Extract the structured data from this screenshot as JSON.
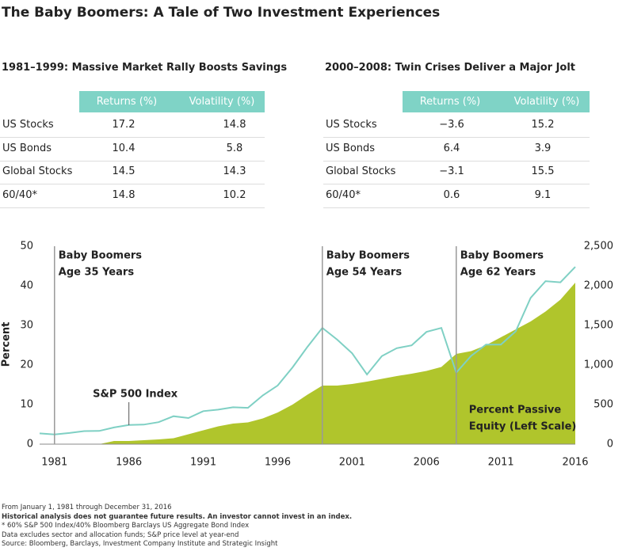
{
  "title": "The Baby Boomers: A Tale of Two Investment Experiences",
  "tables": [
    {
      "title": "1981–1999: Massive Market Rally Boosts Savings",
      "columns": [
        "Returns (%)",
        "Volatility (%)"
      ],
      "rows": [
        [
          "US Stocks",
          "17.2",
          "14.8"
        ],
        [
          "US Bonds",
          "10.4",
          "5.8"
        ],
        [
          "Global Stocks",
          "14.5",
          "14.3"
        ],
        [
          "60/40*",
          "14.8",
          "10.2"
        ]
      ]
    },
    {
      "title": "2000–2008: Twin Crises Deliver a Major Jolt",
      "columns": [
        "Returns (%)",
        "Volatility (%)"
      ],
      "rows": [
        [
          "US Stocks",
          "−3.6",
          "15.2"
        ],
        [
          "US Bonds",
          "6.4",
          "3.9"
        ],
        [
          "Global Stocks",
          "−3.1",
          "15.5"
        ],
        [
          "60/40*",
          "0.6",
          "9.1"
        ]
      ]
    }
  ],
  "chart_data": {
    "type": "combo",
    "ylabel": "Percent",
    "x": [
      1980,
      1981,
      1982,
      1983,
      1984,
      1985,
      1986,
      1987,
      1988,
      1989,
      1990,
      1991,
      1992,
      1993,
      1994,
      1995,
      1996,
      1997,
      1998,
      1999,
      2000,
      2001,
      2002,
      2003,
      2004,
      2005,
      2006,
      2007,
      2008,
      2009,
      2010,
      2011,
      2012,
      2013,
      2014,
      2015,
      2016
    ],
    "xlim": [
      1980,
      2016
    ],
    "xticks": [
      1981,
      1986,
      1991,
      1996,
      2001,
      2006,
      2011,
      2016
    ],
    "ylim": [
      0,
      50
    ],
    "yticks": [
      0,
      10,
      20,
      30,
      40,
      50
    ],
    "y2lim": [
      0,
      2500
    ],
    "y2ticks": [
      0,
      500,
      {
        "value": 1000,
        "label": "1,000"
      },
      {
        "value": 1500,
        "label": "1,500"
      },
      {
        "value": 2000,
        "label": "2,000"
      },
      {
        "value": 2500,
        "label": "2,500"
      }
    ],
    "series": [
      {
        "name": "Percent Passive Equity (Left Scale)",
        "kind": "area",
        "color": "#b0c52c",
        "values": [
          0,
          0,
          0,
          0,
          0,
          0.8,
          0.8,
          1,
          1.2,
          1.5,
          2.5,
          3.5,
          4.5,
          5.2,
          5.5,
          6.5,
          8,
          10,
          12.5,
          14.8,
          14.8,
          15.2,
          15.8,
          16.5,
          17.2,
          17.8,
          18.5,
          19.5,
          22.8,
          23.5,
          25,
          27,
          29,
          31,
          33.5,
          36.5,
          40.8
        ]
      },
      {
        "name": "S&P 500 Index",
        "kind": "line",
        "axis": "y2",
        "color": "#7fd0c4",
        "values": [
          136,
          122,
          141,
          165,
          167,
          211,
          242,
          247,
          278,
          353,
          330,
          417,
          436,
          466,
          459,
          616,
          741,
          970,
          1229,
          1469,
          1320,
          1148,
          880,
          1112,
          1212,
          1248,
          1418,
          1468,
          903,
          1115,
          1258,
          1258,
          1426,
          1848,
          2059,
          2044,
          2239
        ]
      }
    ],
    "series_labels": [
      {
        "lines": [
          "S&P 500 Index"
        ],
        "x": 1986
      },
      {
        "lines": [
          "Percent Passive",
          "Equity (Left Scale)"
        ],
        "x": 2008
      }
    ],
    "annotations": [
      {
        "x": 1981,
        "lines": [
          "Baby Boomers",
          "Age 35 Years"
        ]
      },
      {
        "x": 1999,
        "lines": [
          "Baby Boomers",
          "Age 54 Years"
        ]
      },
      {
        "x": 2008,
        "lines": [
          "Baby Boomers",
          "Age 62 Years"
        ]
      }
    ]
  },
  "footnotes": [
    "From January 1, 1981 through December 31, 2016",
    "Historical analysis does not guarantee future results. An investor cannot invest in an index.",
    "* 60% S&P 500 Index/40% Bloomberg Barclays US Aggregate Bond Index",
    "Data excludes sector and allocation funds; S&P price level at year-end",
    "Source: Bloomberg, Barclays, Investment Company Institute and Strategic Insight"
  ]
}
